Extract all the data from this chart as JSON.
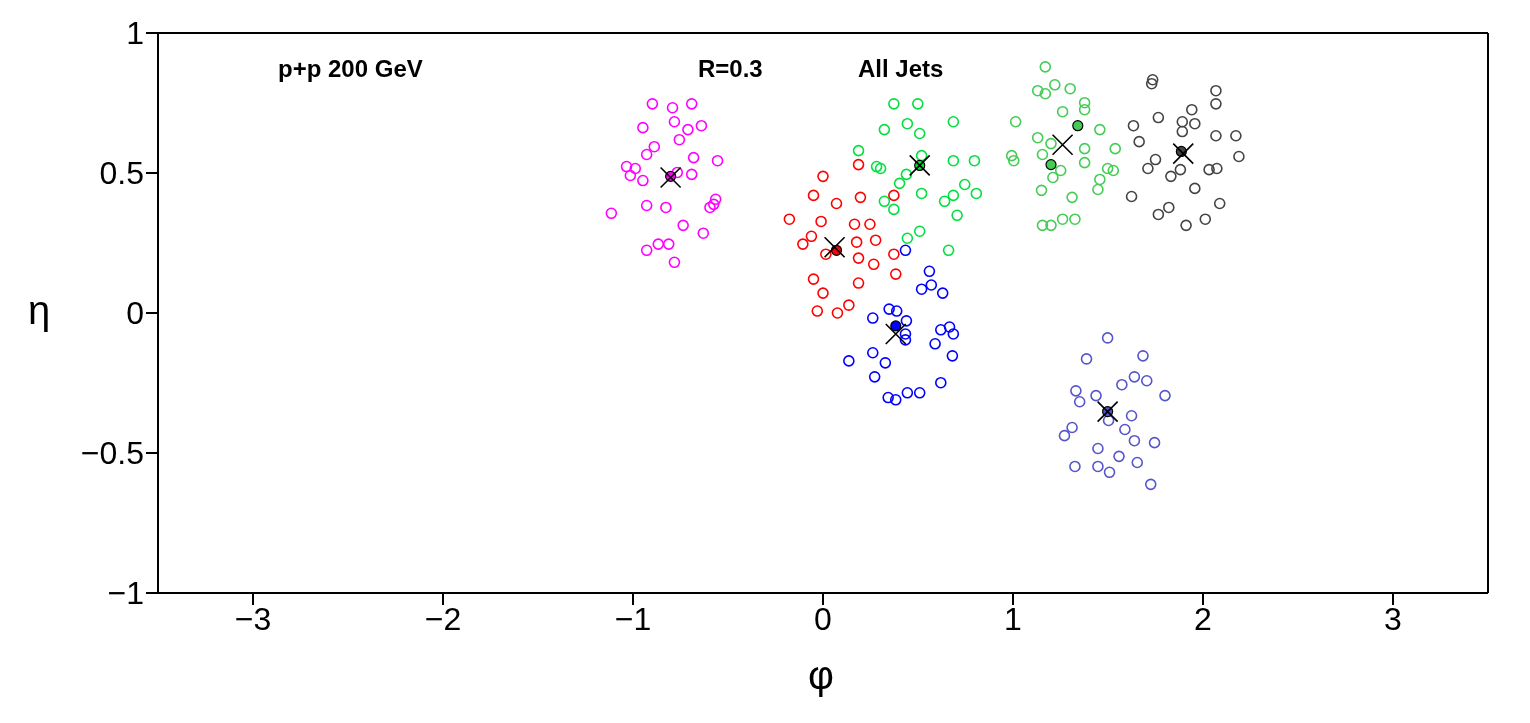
{
  "chart_data": {
    "type": "scatter",
    "title": "p+p 200 GeV",
    "annotations": [
      "R=0.3",
      "All Jets"
    ],
    "xlabel": "φ",
    "ylabel": "η",
    "xlim": [
      -3.5,
      3.5
    ],
    "ylim": [
      -1,
      1
    ],
    "xticks": [
      {
        "value": -3,
        "label": "−3"
      },
      {
        "value": -2,
        "label": "−2"
      },
      {
        "value": -1,
        "label": "−1"
      },
      0,
      1,
      2,
      3
    ],
    "yticks": [
      {
        "value": -1,
        "label": "−1"
      },
      {
        "value": -0.5,
        "label": "−0.5"
      },
      0,
      0.5,
      1
    ],
    "legend": false,
    "marker": "circle",
    "series": [
      {
        "color": "#ff00ff",
        "x": [
          -0.898,
          -0.792,
          -0.691,
          -0.782,
          -0.948,
          -0.711,
          -0.64,
          -0.756,
          -0.888,
          -0.928,
          -0.681,
          -0.555,
          -1.034,
          -0.988,
          -1.014,
          -0.948,
          -0.767,
          -0.691,
          -0.928,
          -0.827,
          -1.114,
          -0.565,
          -0.595,
          -0.575,
          -0.736,
          -0.63,
          -0.928,
          -0.867,
          -0.812,
          -0.782
        ],
        "values": [
          0.747,
          0.733,
          0.747,
          0.683,
          0.662,
          0.655,
          0.669,
          0.619,
          0.594,
          0.566,
          0.555,
          0.544,
          0.523,
          0.516,
          0.491,
          0.473,
          0.502,
          0.495,
          0.384,
          0.377,
          0.356,
          0.406,
          0.377,
          0.388,
          0.313,
          0.285,
          0.224,
          0.246,
          0.246,
          0.181
        ]
      },
      {
        "color": "#ff0000",
        "x": [
          0.187,
          0.0,
          -0.05,
          0.071,
          0.197,
          0.373,
          -0.177,
          -0.01,
          0.166,
          0.247,
          -0.061,
          -0.106,
          0.177,
          0.277,
          0.015,
          0.187,
          0.267,
          0.373,
          0.383,
          -0.05,
          0.187,
          0.0,
          -0.03,
          0.076,
          0.136
        ],
        "values": [
          0.53,
          0.488,
          0.42,
          0.391,
          0.413,
          0.42,
          0.335,
          0.327,
          0.317,
          0.317,
          0.274,
          0.246,
          0.253,
          0.26,
          0.21,
          0.196,
          0.174,
          0.21,
          0.139,
          0.121,
          0.107,
          0.071,
          0.007,
          0.0,
          0.028
        ]
      },
      {
        "color": "#00e040",
        "x": [
          0.373,
          0.499,
          0.686,
          0.444,
          0.323,
          0.509,
          0.187,
          0.282,
          0.303,
          0.519,
          0.686,
          0.797,
          0.439,
          0.403,
          0.746,
          0.807,
          0.686,
          0.64,
          0.519,
          0.323,
          0.373,
          0.706,
          0.509,
          0.444,
          0.661
        ],
        "values": [
          0.747,
          0.747,
          0.683,
          0.676,
          0.655,
          0.641,
          0.58,
          0.523,
          0.516,
          0.562,
          0.544,
          0.544,
          0.495,
          0.463,
          0.459,
          0.427,
          0.42,
          0.399,
          0.427,
          0.399,
          0.37,
          0.349,
          0.292,
          0.267,
          0.224
        ]
      },
      {
        "color": "#0000ff",
        "x": [
          0.56,
          0.519,
          0.57,
          0.63,
          0.348,
          0.388,
          0.262,
          0.439,
          0.434,
          0.434,
          0.62,
          0.666,
          0.686,
          0.59,
          0.681,
          0.262,
          0.328,
          0.136,
          0.272,
          0.62,
          0.343,
          0.383,
          0.444,
          0.509,
          0.434
        ],
        "values": [
          0.149,
          0.085,
          0.1,
          0.071,
          0.014,
          0.007,
          -0.018,
          -0.028,
          -0.075,
          -0.096,
          -0.06,
          -0.05,
          -0.075,
          -0.11,
          -0.153,
          -0.142,
          -0.178,
          -0.171,
          -0.228,
          -0.249,
          -0.302,
          -0.31,
          -0.285,
          -0.285,
          0.224
        ]
      },
      {
        "color": "#44cc55",
        "x": [
          1.17,
          1.13,
          1.17,
          1.22,
          1.301,
          1.377,
          1.377,
          1.261,
          1.014,
          1.457,
          1.13,
          1.2,
          1.538,
          1.377,
          0.993,
          1.004,
          1.155,
          1.377,
          1.251,
          1.21,
          1.498,
          1.528,
          1.457,
          1.447,
          1.15,
          1.311,
          1.155,
          1.2,
          1.261,
          1.326
        ],
        "values": [
          0.879,
          0.794,
          0.783,
          0.815,
          0.801,
          0.751,
          0.726,
          0.719,
          0.683,
          0.655,
          0.626,
          0.605,
          0.587,
          0.587,
          0.562,
          0.544,
          0.566,
          0.537,
          0.509,
          0.484,
          0.516,
          0.509,
          0.477,
          0.441,
          0.438,
          0.413,
          0.313,
          0.313,
          0.335,
          0.335
        ]
      },
      {
        "color": "#444444",
        "x": [
          1.735,
          1.73,
          2.068,
          2.068,
          1.941,
          1.765,
          1.634,
          1.891,
          1.957,
          1.891,
          2.068,
          1.664,
          1.75,
          1.71,
          1.881,
          1.831,
          2.032,
          2.073,
          1.957,
          1.624,
          2.088,
          1.82,
          1.765,
          2.012,
          1.911,
          2.173,
          2.189
        ],
        "values": [
          0.833,
          0.819,
          0.794,
          0.747,
          0.726,
          0.698,
          0.669,
          0.683,
          0.676,
          0.648,
          0.633,
          0.612,
          0.548,
          0.516,
          0.512,
          0.488,
          0.512,
          0.516,
          0.445,
          0.416,
          0.391,
          0.377,
          0.352,
          0.335,
          0.313,
          0.633,
          0.559
        ]
      },
      {
        "color": "#5555cc",
        "x": [
          1.498,
          1.387,
          1.684,
          1.639,
          1.704,
          1.573,
          1.331,
          1.351,
          1.437,
          1.8,
          1.624,
          1.503,
          1.311,
          1.271,
          1.589,
          1.639,
          1.745,
          1.447,
          1.558,
          1.654,
          1.326,
          1.447,
          1.508,
          1.725
        ],
        "values": [
          -0.089,
          -0.164,
          -0.153,
          -0.228,
          -0.242,
          -0.256,
          -0.278,
          -0.317,
          -0.295,
          -0.295,
          -0.367,
          -0.384,
          -0.409,
          -0.438,
          -0.416,
          -0.456,
          -0.463,
          -0.484,
          -0.512,
          -0.534,
          -0.548,
          -0.548,
          -0.569,
          -0.612
        ]
      },
      {
        "color": "#ff00ff",
        "marker": "circle",
        "x": [
          -0.802
        ],
        "values": [
          0.488
        ]
      },
      {
        "color": "#ff0000",
        "marker": "circle",
        "x": [
          0.071
        ],
        "values": [
          0.224
        ]
      },
      {
        "color": "#00e040",
        "marker": "circle",
        "x": [
          0.509
        ],
        "values": [
          0.527
        ]
      },
      {
        "color": "#0000ff",
        "marker": "circle",
        "x": [
          0.383
        ],
        "values": [
          -0.046
        ]
      },
      {
        "color": "#44cc55",
        "marker": "circle",
        "x": [
          1.341,
          1.2
        ],
        "values": [
          0.669,
          0.53
        ]
      },
      {
        "color": "#444444",
        "marker": "circle",
        "x": [
          1.886
        ],
        "values": [
          0.577
        ]
      },
      {
        "color": "#5555cc",
        "marker": "circle",
        "x": [
          1.498
        ],
        "values": [
          -0.352
        ]
      },
      {
        "color": "#000000",
        "marker": "cross",
        "x": [
          -0.802,
          0.061,
          0.509,
          0.383,
          1.261,
          1.896,
          1.498
        ],
        "values": [
          0.484,
          0.235,
          0.527,
          -0.075,
          0.601,
          0.569,
          -0.352
        ]
      }
    ]
  }
}
